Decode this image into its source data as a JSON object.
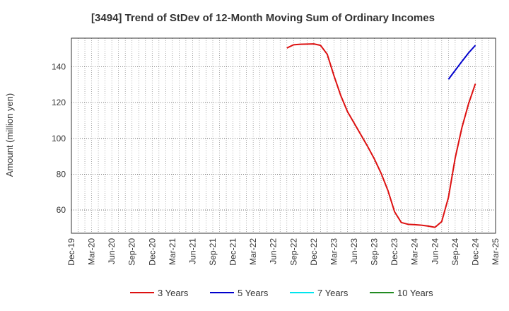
{
  "chart_data": {
    "type": "line",
    "title": "[3494]  Trend of StDev of 12-Month Moving Sum of Ordinary Incomes",
    "ylabel": "Amount (million yen)",
    "xlabel": "",
    "ylim": [
      47,
      156
    ],
    "yticks": [
      60,
      80,
      100,
      120,
      140
    ],
    "grid": true,
    "legend_position": "bottom",
    "x_tick_labels": [
      "Dec-19",
      "Mar-20",
      "Jun-20",
      "Sep-20",
      "Dec-20",
      "Mar-21",
      "Jun-21",
      "Sep-21",
      "Dec-21",
      "Mar-22",
      "Jun-22",
      "Sep-22",
      "Dec-22",
      "Mar-23",
      "Jun-23",
      "Sep-23",
      "Dec-23",
      "Mar-24",
      "Jun-24",
      "Sep-24",
      "Dec-24",
      "Mar-25"
    ],
    "x_months": [
      "Dec-19",
      "Jan-20",
      "Feb-20",
      "Mar-20",
      "Apr-20",
      "May-20",
      "Jun-20",
      "Jul-20",
      "Aug-20",
      "Sep-20",
      "Oct-20",
      "Nov-20",
      "Dec-20",
      "Jan-21",
      "Feb-21",
      "Mar-21",
      "Apr-21",
      "May-21",
      "Jun-21",
      "Jul-21",
      "Aug-21",
      "Sep-21",
      "Oct-21",
      "Nov-21",
      "Dec-21",
      "Jan-22",
      "Feb-22",
      "Mar-22",
      "Apr-22",
      "May-22",
      "Jun-22",
      "Jul-22",
      "Aug-22",
      "Sep-22",
      "Oct-22",
      "Nov-22",
      "Dec-22",
      "Jan-23",
      "Feb-23",
      "Mar-23",
      "Apr-23",
      "May-23",
      "Jun-23",
      "Jul-23",
      "Aug-23",
      "Sep-23",
      "Oct-23",
      "Nov-23",
      "Dec-23",
      "Jan-24",
      "Feb-24",
      "Mar-24",
      "Apr-24",
      "May-24",
      "Jun-24",
      "Jul-24",
      "Aug-24",
      "Sep-24",
      "Oct-24",
      "Nov-24",
      "Dec-24",
      "Jan-25",
      "Feb-25",
      "Mar-25"
    ],
    "series": [
      {
        "name": "3 Years",
        "color": "#dd1111",
        "points": [
          [
            "Aug-22",
            150.5
          ],
          [
            "Sep-22",
            152.3
          ],
          [
            "Oct-22",
            152.6
          ],
          [
            "Nov-22",
            152.7
          ],
          [
            "Dec-22",
            152.8
          ],
          [
            "Jan-23",
            152.0
          ],
          [
            "Feb-23",
            147.0
          ],
          [
            "Mar-23",
            135.0
          ],
          [
            "Apr-23",
            124.0
          ],
          [
            "May-23",
            115.0
          ],
          [
            "Jun-23",
            108.5
          ],
          [
            "Jul-23",
            102.0
          ],
          [
            "Aug-23",
            95.5
          ],
          [
            "Sep-23",
            88.5
          ],
          [
            "Oct-23",
            80.5
          ],
          [
            "Nov-23",
            71.0
          ],
          [
            "Dec-23",
            59.0
          ],
          [
            "Jan-24",
            53.0
          ],
          [
            "Feb-24",
            52.0
          ],
          [
            "Mar-24",
            51.8
          ],
          [
            "Apr-24",
            51.5
          ],
          [
            "May-24",
            51.0
          ],
          [
            "Jun-24",
            50.3
          ],
          [
            "Jul-24",
            53.5
          ],
          [
            "Aug-24",
            67.0
          ],
          [
            "Sep-24",
            89.0
          ],
          [
            "Oct-24",
            106.0
          ],
          [
            "Nov-24",
            119.5
          ],
          [
            "Dec-24",
            130.5
          ]
        ]
      },
      {
        "name": "5 Years",
        "color": "#0000cc",
        "points": [
          [
            "Aug-24",
            133.0
          ],
          [
            "Sep-24",
            138.0
          ],
          [
            "Oct-24",
            143.0
          ],
          [
            "Nov-24",
            147.8
          ],
          [
            "Dec-24",
            152.0
          ]
        ]
      },
      {
        "name": "7 Years",
        "color": "#00e5ee",
        "points": []
      },
      {
        "name": "10 Years",
        "color": "#228b22",
        "points": []
      }
    ]
  }
}
